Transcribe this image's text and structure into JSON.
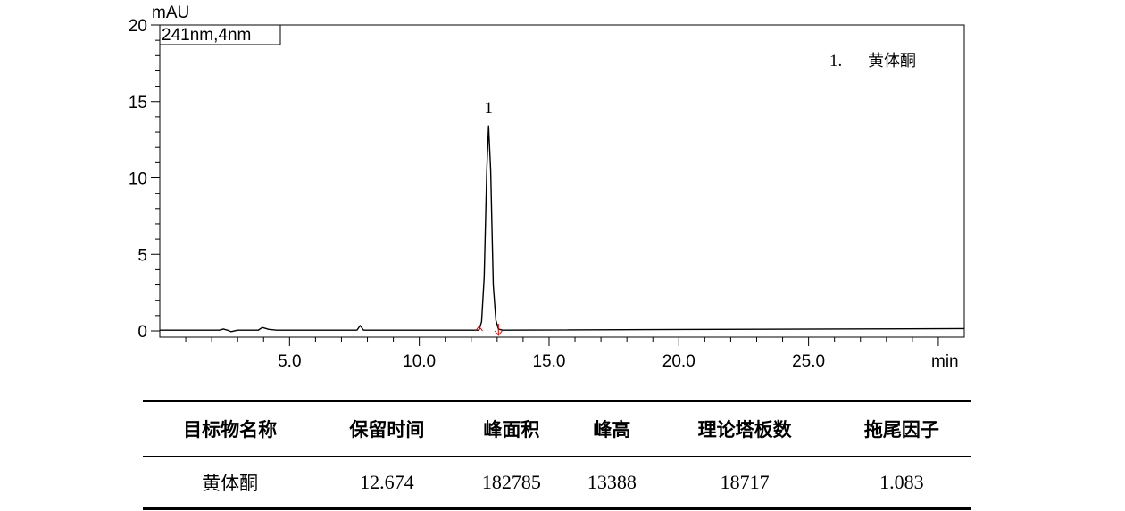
{
  "chart_data": {
    "type": "line",
    "y_unit_label": "mAU",
    "x_unit_label": "min",
    "channel_label": "241nm,4nm",
    "xlim": [
      0,
      31
    ],
    "ylim": [
      0,
      20
    ],
    "x_ticks": [
      {
        "value": 5,
        "label": "5.0"
      },
      {
        "value": 10,
        "label": "10.0"
      },
      {
        "value": 15,
        "label": "15.0"
      },
      {
        "value": 20,
        "label": "20.0"
      },
      {
        "value": 25,
        "label": "25.0"
      }
    ],
    "y_ticks": [
      {
        "value": 0,
        "label": "0"
      },
      {
        "value": 5,
        "label": "5"
      },
      {
        "value": 10,
        "label": "10"
      },
      {
        "value": 15,
        "label": "15"
      },
      {
        "value": 20,
        "label": "20"
      }
    ],
    "legend_entry": {
      "number": "1.",
      "name": "黄体酮"
    },
    "peaks": [
      {
        "label": "1",
        "retention_time": 12.67,
        "height": 13.4,
        "start": 12.3,
        "end": 13.05
      }
    ],
    "series": [
      {
        "x": [
          0,
          2.3,
          2.45,
          2.6,
          2.75,
          3.0,
          3.8,
          3.95,
          4.2,
          4.5,
          7.6,
          7.72,
          7.85,
          8.0,
          12.3,
          12.4,
          12.5,
          12.6,
          12.67,
          12.75,
          12.85,
          12.95,
          13.05,
          13.2,
          31
        ],
        "y": [
          0.05,
          0.05,
          0.12,
          0.05,
          -0.05,
          0.05,
          0.05,
          0.22,
          0.1,
          0.05,
          0.05,
          0.35,
          0.05,
          0.05,
          0.05,
          0.6,
          3.5,
          10.5,
          13.4,
          10.5,
          3.0,
          0.7,
          0.12,
          0.05,
          0.15
        ]
      }
    ]
  },
  "table": {
    "headers": [
      "目标物名称",
      "保留时间",
      "峰面积",
      "峰高",
      "理论塔板数",
      "拖尾因子"
    ],
    "row": [
      "黄体酮",
      "12.674",
      "182785",
      "13388",
      "18717",
      "1.083"
    ]
  }
}
